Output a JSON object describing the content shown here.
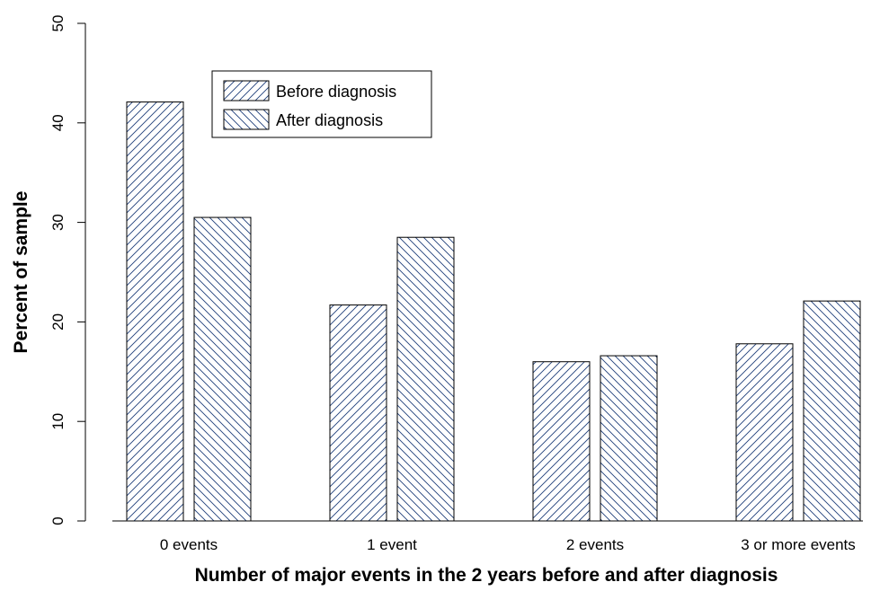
{
  "chart_data": {
    "type": "bar",
    "title": "",
    "xlabel": "Number of major events in the 2 years before and after diagnosis",
    "ylabel": "Percent of sample",
    "categories": [
      "0 events",
      "1 event",
      "2 events",
      "3 or more events"
    ],
    "series": [
      {
        "name": "Before diagnosis",
        "values": [
          42.1,
          21.7,
          16.0,
          17.8
        ]
      },
      {
        "name": "After diagnosis",
        "values": [
          30.5,
          28.5,
          16.6,
          22.1
        ]
      }
    ],
    "ylim": [
      0,
      50
    ],
    "yticks": [
      0,
      10,
      20,
      30,
      40,
      50
    ],
    "grid": false,
    "legend_position": "top-left",
    "bar_fill": "hatched",
    "hatch_color": "#1f3f7a",
    "edge_color": "#000000"
  }
}
